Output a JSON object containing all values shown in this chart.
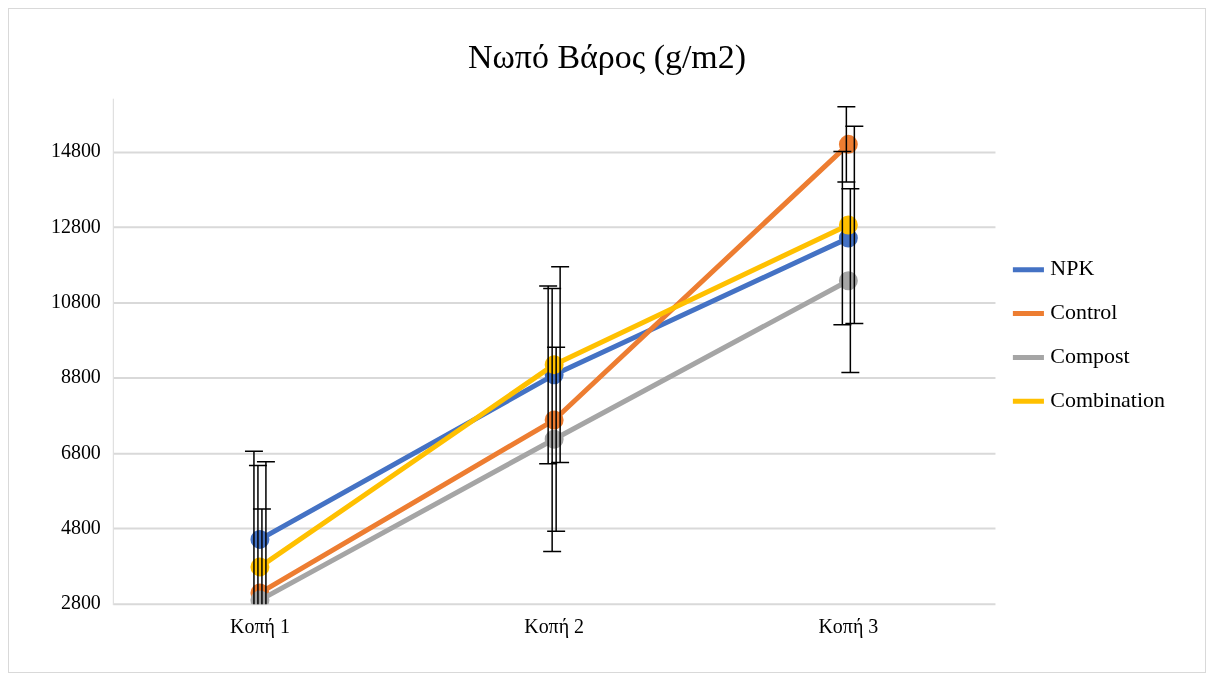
{
  "chart_data": {
    "type": "line",
    "title": "Νωπό Βάρος (g/m2)",
    "categories": [
      "Κοπή 1",
      "Κοπή 2",
      "Κοπή 3"
    ],
    "series": [
      {
        "name": "NPK",
        "color": "#4472c4",
        "values": [
          4520,
          8890,
          12520
        ],
        "errors": [
          [
            2800,
            6860
          ],
          2360,
          2300
        ]
      },
      {
        "name": "Control",
        "color": "#ed7d31",
        "values": [
          3100,
          7690,
          15010
        ],
        "errors": [
          [
            2800,
            6480
          ],
          3490,
          1000
        ]
      },
      {
        "name": "Compost",
        "color": "#a5a5a5",
        "values": [
          2910,
          7180,
          11390
        ],
        "errors": [
          [
            2800,
            5330
          ],
          2440,
          2440
        ]
      },
      {
        "name": "Combination",
        "color": "#ffc000",
        "values": [
          3790,
          9160,
          12870
        ],
        "errors": [
          [
            2800,
            6580
          ],
          2600,
          2620
        ]
      }
    ],
    "ylim": [
      2800,
      16200
    ],
    "yticks": [
      2800,
      4800,
      6800,
      8800,
      10800,
      12800,
      14800
    ],
    "grid": "y",
    "legend": "right",
    "marker": "circle",
    "line_style": "solid"
  }
}
